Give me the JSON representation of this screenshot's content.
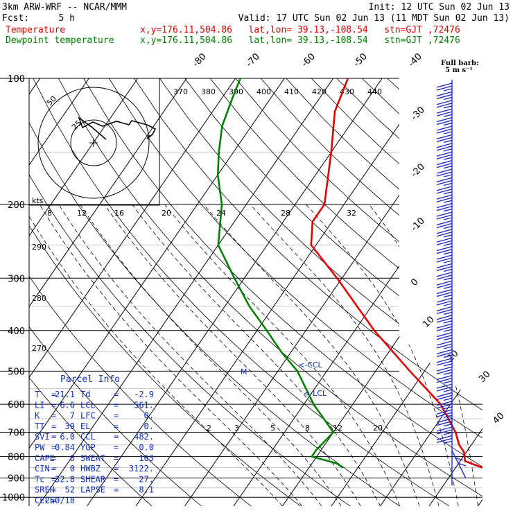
{
  "header": {
    "model": "3km ARW-WRF -- NCAR/MMM",
    "init": "Init: 12 UTC Sun 02 Jun 13",
    "fcst_label": "Fcst:",
    "fcst_value": "5 h",
    "valid": "Valid: 17 UTC Sun 02 Jun 13 (11 MDT Sun 02 Jun 13)",
    "series": [
      {
        "name": "Temperature",
        "info": "x,y=176.11,504.86   lat,lon= 39.13,-108.54   stn=GJT ,72476",
        "color": "#e00000"
      },
      {
        "name": "Dewpoint temperature",
        "info": "x,y=176.11,504.86   lat,lon= 39.13,-108.54   stn=GJT ,72476",
        "color": "#008000"
      }
    ]
  },
  "full_barb": {
    "line1": "Full barb:",
    "line2": "5 m s⁻¹"
  },
  "hodograph": {
    "unit_label": "kts",
    "ring_labels": [
      "25",
      "50"
    ]
  },
  "lcl_labels": {
    "ccl": "<-CCL",
    "lcl": "<-LCL",
    "m": "M"
  },
  "parcel_info": {
    "title": "Parcel Info",
    "rows": [
      [
        "T",
        "=",
        "21.1",
        "Td",
        "=",
        "-2.9"
      ],
      [
        "LI",
        "=",
        "6.6",
        "LCL",
        "=",
        "561."
      ],
      [
        "K",
        "=",
        "7",
        "LFC",
        "=",
        "0."
      ],
      [
        "TT",
        "=",
        "39",
        "EL",
        "=",
        "0."
      ],
      [
        "SVI",
        "=",
        "6.0",
        "CCL",
        "=",
        "482."
      ],
      [
        "PW",
        "=",
        "0.84",
        "YGP",
        "=",
        "0.0"
      ],
      [
        "CAPE",
        "=",
        "0",
        "SWEAT",
        "=",
        "163"
      ],
      [
        "CIN",
        "=",
        "0",
        "HWBZ",
        "=",
        "3122."
      ],
      [
        "Tc",
        "=",
        "32.8",
        "SHEAR",
        "=",
        "27."
      ],
      [
        "SREH",
        "=",
        "52",
        "LAPSE",
        "=",
        "8.1"
      ],
      [
        "CELL",
        "=",
        "250/18",
        "",
        "",
        ""
      ]
    ]
  },
  "chart_data": {
    "type": "skew-t",
    "pressure_levels": [
      100,
      200,
      300,
      400,
      500,
      600,
      700,
      800,
      900,
      1000
    ],
    "pressure_ticks_labels": [
      "100",
      "200",
      "300",
      "400",
      "500",
      "600",
      "700",
      "800",
      "900",
      "1000"
    ],
    "temp_labels": [
      "-80",
      "-70",
      "-60",
      "-50",
      "-40",
      "-30",
      "-20",
      "-10",
      "0",
      "10",
      "20",
      "30",
      "40"
    ],
    "theta_labels": [
      "370",
      "380",
      "390",
      "400",
      "410",
      "420",
      "430",
      "440"
    ],
    "theta_e_labels_upper": [
      "8",
      "12",
      "16",
      "20",
      "24",
      "28",
      "32"
    ],
    "theta_labels_left": [
      "290",
      "280",
      "270"
    ],
    "mixing_ratio_labels": [
      "2",
      "3",
      "5",
      "8",
      "12",
      "20"
    ],
    "temperature": {
      "name": "Temperature",
      "points": [
        [
          850,
          25.5
        ],
        [
          820,
          21.0
        ],
        [
          780,
          19.5
        ],
        [
          750,
          17.5
        ],
        [
          700,
          15.0
        ],
        [
          600,
          8.0
        ],
        [
          500,
          -3.0
        ],
        [
          400,
          -16.0
        ],
        [
          300,
          -31.0
        ],
        [
          250,
          -41.0
        ],
        [
          220,
          -44.0
        ],
        [
          200,
          -44.0
        ],
        [
          150,
          -50.0
        ],
        [
          120,
          -55.0
        ],
        [
          100,
          -57.0
        ]
      ]
    },
    "dewpoint": {
      "name": "Dewpoint temperature",
      "points": [
        [
          850,
          -3.0
        ],
        [
          830,
          -5.0
        ],
        [
          800,
          -11.0
        ],
        [
          770,
          -11.0
        ],
        [
          700,
          -10.0
        ],
        [
          600,
          -18.0
        ],
        [
          500,
          -26.0
        ],
        [
          450,
          -32.0
        ],
        [
          400,
          -38.0
        ],
        [
          350,
          -45.0
        ],
        [
          300,
          -52.0
        ],
        [
          250,
          -60.0
        ],
        [
          200,
          -65.0
        ],
        [
          170,
          -70.0
        ],
        [
          150,
          -73.0
        ],
        [
          130,
          -76.0
        ],
        [
          110,
          -78.0
        ],
        [
          100,
          -79.0
        ]
      ]
    }
  }
}
